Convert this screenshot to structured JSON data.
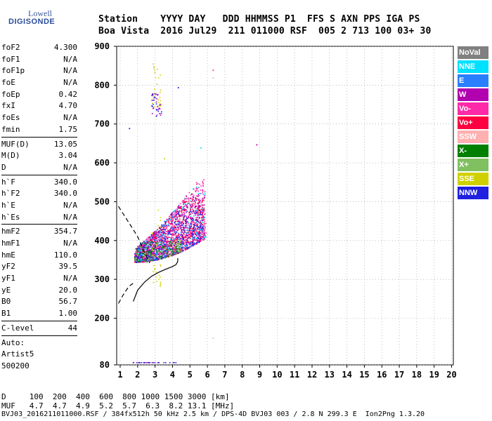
{
  "logo": {
    "line1": "Lowell",
    "line2": "DIGISONDE"
  },
  "header": {
    "line1": "Station    YYYY DAY   DDD HHMMSS P1  FFS S AXN PPS IGA PS",
    "line2": "Boa Vista  2016 Jul29  211 011000 RSF  005 2 713 100 03+ 30"
  },
  "params": {
    "group1": [
      {
        "name": "foF2",
        "value": "4.300"
      },
      {
        "name": "foF1",
        "value": "N/A"
      },
      {
        "name": "foF1p",
        "value": "N/A"
      },
      {
        "name": "foE",
        "value": "N/A"
      },
      {
        "name": "foEp",
        "value": "0.42"
      },
      {
        "name": "fxI",
        "value": "4.70"
      },
      {
        "name": "foEs",
        "value": "N/A"
      },
      {
        "name": "fmin",
        "value": "1.75"
      }
    ],
    "group2": [
      {
        "name": "MUF(D)",
        "value": "13.05"
      },
      {
        "name": "M(D)",
        "value": "3.04"
      },
      {
        "name": "D",
        "value": "N/A"
      }
    ],
    "group3": [
      {
        "name": "h`F",
        "value": "340.0"
      },
      {
        "name": "h`F2",
        "value": "340.0"
      },
      {
        "name": "h`E",
        "value": "N/A"
      },
      {
        "name": "h`Es",
        "value": "N/A"
      }
    ],
    "group4": [
      {
        "name": "hmF2",
        "value": "354.7"
      },
      {
        "name": "hmF1",
        "value": "N/A"
      },
      {
        "name": "hmE",
        "value": "110.0"
      },
      {
        "name": "yF2",
        "value": "39.5"
      },
      {
        "name": "yF1",
        "value": "N/A"
      },
      {
        "name": "yE",
        "value": "20.0"
      },
      {
        "name": "B0",
        "value": "56.7"
      },
      {
        "name": "B1",
        "value": "1.00"
      }
    ],
    "group5": [
      {
        "name": "C-level",
        "value": "44"
      }
    ],
    "auto": [
      "Auto:",
      "Artist5",
      "500200"
    ]
  },
  "footer": {
    "d_row": "D     100  200  400  600  800 1000 1500 3000 [km]",
    "muf_row": "MUF   4.7  4.7  4.9  5.2  5.7  6.3  8.2 13.1 [MHz]",
    "file_row": "BVJ03_2016211011000.RSF / 384fx512h 50 kHz 2.5 km / DPS-4D BVJ03 003 / 2.8 N 299.3 E  Ion2Png 1.3.20"
  },
  "legend": [
    {
      "label": "NoVal",
      "color": "#808080"
    },
    {
      "label": "NNE",
      "color": "#00e0ff"
    },
    {
      "label": "E",
      "color": "#2a7fff"
    },
    {
      "label": "W",
      "color": "#b000b0"
    },
    {
      "label": "Vo-",
      "color": "#ff2aa8"
    },
    {
      "label": "Vo+",
      "color": "#ff0040"
    },
    {
      "label": "SSW",
      "color": "#ffb0b0"
    },
    {
      "label": "X-",
      "color": "#008000"
    },
    {
      "label": "X+",
      "color": "#80c060"
    },
    {
      "label": "SSE",
      "color": "#d0d000"
    },
    {
      "label": "NNW",
      "color": "#2020e0"
    }
  ],
  "chart_data": {
    "type": "scatter",
    "x_ticks": [
      1,
      2,
      3,
      4,
      5,
      6,
      7,
      8,
      9,
      10,
      11,
      12,
      13,
      14,
      15,
      16,
      17,
      18,
      19,
      20
    ],
    "y_ticks": [
      80,
      200,
      300,
      400,
      500,
      600,
      700,
      800,
      900
    ],
    "xlim": [
      0.8,
      20.1
    ],
    "grid": true,
    "series": [
      {
        "name": "Vo+",
        "color": "#ff0040",
        "region": {
          "x": [
            1.8,
            5.8
          ],
          "y": [
            340,
            510
          ]
        },
        "count": 900
      },
      {
        "name": "Vo-",
        "color": "#ff2aa8",
        "region": {
          "x": [
            1.8,
            5.9
          ],
          "y": [
            345,
            560
          ]
        },
        "count": 700
      },
      {
        "name": "W",
        "color": "#b000b0",
        "region": {
          "x": [
            1.9,
            5.8
          ],
          "y": [
            345,
            520
          ]
        },
        "count": 500
      },
      {
        "name": "NNW",
        "color": "#2020e0",
        "region": {
          "x": [
            1.8,
            5.7
          ],
          "y": [
            340,
            480
          ]
        },
        "count": 300
      },
      {
        "name": "E",
        "color": "#2a7fff",
        "region": {
          "x": [
            2.0,
            5.8
          ],
          "y": [
            350,
            500
          ]
        },
        "count": 200
      },
      {
        "name": "NNE",
        "color": "#00e0ff",
        "region": {
          "x": [
            2.0,
            5.9
          ],
          "y": [
            350,
            560
          ]
        },
        "count": 150
      },
      {
        "name": "X-",
        "color": "#008000",
        "region": {
          "x": [
            1.8,
            4.5
          ],
          "y": [
            345,
            400
          ]
        },
        "count": 150
      },
      {
        "name": "X+",
        "color": "#80c060",
        "region": {
          "x": [
            1.8,
            4.5
          ],
          "y": [
            345,
            400
          ]
        },
        "count": 80
      },
      {
        "name": "SSE",
        "color": "#d0d000",
        "region": {
          "x": [
            2.8,
            3.3
          ],
          "y": [
            280,
            860
          ]
        },
        "count": 60
      }
    ],
    "profile_solid": [
      [
        1.75,
        243
      ],
      [
        2.0,
        272
      ],
      [
        2.4,
        293
      ],
      [
        2.8,
        308
      ],
      [
        3.2,
        318
      ],
      [
        3.6,
        326
      ],
      [
        4.0,
        333
      ],
      [
        4.2,
        338
      ],
      [
        4.3,
        346
      ],
      [
        4.3,
        354.7
      ]
    ],
    "profile_dashed": [
      [
        0.9,
        488
      ],
      [
        1.3,
        460
      ],
      [
        1.7,
        432
      ],
      [
        2.0,
        410
      ],
      [
        2.2,
        390
      ],
      [
        2.4,
        368
      ],
      [
        2.6,
        352
      ],
      [
        2.7,
        342
      ]
    ],
    "profile_dashed_low": [
      [
        0.9,
        238
      ],
      [
        1.2,
        262
      ],
      [
        1.5,
        282
      ],
      [
        1.75,
        290
      ]
    ]
  }
}
